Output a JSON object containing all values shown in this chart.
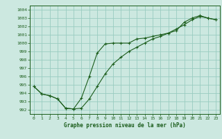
{
  "title": "",
  "xlabel": "Graphe pression niveau de la mer (hPa)",
  "bg_color": "#cce8e0",
  "grid_color": "#99ccc0",
  "line_color": "#1a5c1a",
  "xlim": [
    -0.5,
    23.5
  ],
  "ylim": [
    991.5,
    1004.5
  ],
  "yticks": [
    992,
    993,
    994,
    995,
    996,
    997,
    998,
    999,
    1000,
    1001,
    1002,
    1003,
    1004
  ],
  "xticks": [
    0,
    1,
    2,
    3,
    4,
    5,
    6,
    7,
    8,
    9,
    10,
    11,
    12,
    13,
    14,
    15,
    16,
    17,
    18,
    19,
    20,
    21,
    22,
    23
  ],
  "series1_x": [
    0,
    1,
    2,
    3,
    4,
    5,
    6,
    7,
    8,
    9,
    10,
    11,
    12,
    13,
    14,
    15,
    16,
    17,
    18,
    19,
    20,
    21,
    22,
    23
  ],
  "series1_y": [
    994.8,
    993.9,
    993.7,
    993.3,
    992.2,
    992.1,
    993.4,
    996.0,
    998.8,
    999.9,
    1000.0,
    1000.0,
    1000.0,
    1000.5,
    1000.6,
    1000.8,
    1001.0,
    1001.2,
    1001.5,
    1002.5,
    1003.0,
    1003.3,
    1003.0,
    1002.8
  ],
  "series2_x": [
    0,
    1,
    2,
    3,
    4,
    5,
    6,
    7,
    8,
    9,
    10,
    11,
    12,
    13,
    14,
    15,
    16,
    17,
    18,
    19,
    20,
    21,
    22,
    23
  ],
  "series2_y": [
    994.8,
    993.9,
    993.7,
    993.3,
    992.2,
    992.1,
    992.2,
    993.3,
    994.8,
    996.3,
    997.5,
    998.3,
    999.0,
    999.5,
    1000.0,
    1000.5,
    1000.8,
    1001.2,
    1001.7,
    1002.2,
    1002.8,
    1003.2,
    1003.0,
    1002.8
  ]
}
